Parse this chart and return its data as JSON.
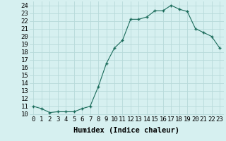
{
  "x": [
    0,
    1,
    2,
    3,
    4,
    5,
    6,
    7,
    8,
    9,
    10,
    11,
    12,
    13,
    14,
    15,
    16,
    17,
    18,
    19,
    20,
    21,
    22,
    23
  ],
  "y": [
    11.0,
    10.7,
    10.2,
    10.3,
    10.3,
    10.3,
    10.7,
    11.0,
    13.5,
    16.5,
    18.5,
    19.5,
    22.2,
    22.2,
    22.5,
    23.3,
    23.3,
    24.0,
    23.5,
    23.2,
    21.0,
    20.5,
    20.0,
    18.5
  ],
  "xlabel": "Humidex (Indice chaleur)",
  "xlim": [
    -0.5,
    23.5
  ],
  "ylim": [
    9.8,
    24.5
  ],
  "xticks": [
    0,
    1,
    2,
    3,
    4,
    5,
    6,
    7,
    8,
    9,
    10,
    11,
    12,
    13,
    14,
    15,
    16,
    17,
    18,
    19,
    20,
    21,
    22,
    23
  ],
  "yticks": [
    10,
    11,
    12,
    13,
    14,
    15,
    16,
    17,
    18,
    19,
    20,
    21,
    22,
    23,
    24
  ],
  "line_color": "#1a6b5a",
  "marker": "+",
  "bg_color": "#d6f0f0",
  "grid_color": "#b8dada",
  "tick_fontsize": 6.5,
  "xlabel_fontsize": 7.5
}
